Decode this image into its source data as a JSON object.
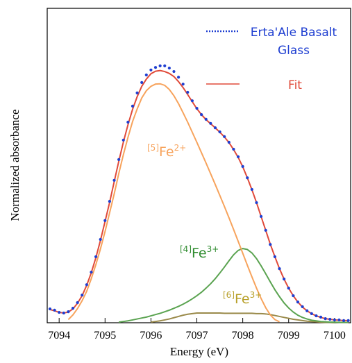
{
  "chart_data": {
    "type": "line",
    "x_label": "Energy (eV)",
    "y_label": "Normalized absorbance",
    "x": [
      7093.8,
      7093.9,
      7094.0,
      7094.1,
      7094.2,
      7094.3,
      7094.4,
      7094.5,
      7094.6,
      7094.7,
      7094.8,
      7094.9,
      7095.0,
      7095.1,
      7095.2,
      7095.3,
      7095.4,
      7095.5,
      7095.6,
      7095.7,
      7095.8,
      7095.9,
      7096.0,
      7096.1,
      7096.2,
      7096.3,
      7096.4,
      7096.5,
      7096.6,
      7096.7,
      7096.8,
      7096.9,
      7097.0,
      7097.1,
      7097.2,
      7097.3,
      7097.4,
      7097.5,
      7097.6,
      7097.7,
      7097.8,
      7097.9,
      7098.0,
      7098.1,
      7098.2,
      7098.3,
      7098.4,
      7098.5,
      7098.6,
      7098.7,
      7098.8,
      7098.9,
      7099.0,
      7099.1,
      7099.2,
      7099.3,
      7099.4,
      7099.5,
      7099.6,
      7099.7,
      7099.8,
      7099.9,
      7100.0,
      7100.1,
      7100.2,
      7100.3
    ],
    "xlim": [
      7093.74,
      7100.35
    ],
    "ylim": [
      0,
      1
    ],
    "xticks": [
      7094,
      7095,
      7096,
      7097,
      7098,
      7099,
      7100
    ],
    "series": [
      {
        "name": "Erta'Ale Basalt Glass",
        "color": "#1f3fd1",
        "style": "dots",
        "values": [
          0.044,
          0.04,
          0.033,
          0.031,
          0.035,
          0.046,
          0.064,
          0.088,
          0.121,
          0.161,
          0.21,
          0.265,
          0.325,
          0.386,
          0.453,
          0.519,
          0.581,
          0.638,
          0.689,
          0.731,
          0.764,
          0.788,
          0.804,
          0.812,
          0.817,
          0.817,
          0.81,
          0.799,
          0.781,
          0.759,
          0.733,
          0.706,
          0.682,
          0.662,
          0.647,
          0.634,
          0.62,
          0.607,
          0.592,
          0.574,
          0.552,
          0.528,
          0.497,
          0.461,
          0.424,
          0.382,
          0.338,
          0.294,
          0.249,
          0.21,
          0.172,
          0.139,
          0.11,
          0.086,
          0.066,
          0.051,
          0.038,
          0.029,
          0.022,
          0.018,
          0.013,
          0.011,
          0.009,
          0.009,
          0.007,
          0.007
        ]
      },
      {
        "name": "Fit",
        "color": "#e04a3a",
        "style": "line",
        "values": [
          0.042,
          0.038,
          0.033,
          0.031,
          0.034,
          0.044,
          0.062,
          0.086,
          0.119,
          0.159,
          0.207,
          0.262,
          0.322,
          0.383,
          0.449,
          0.514,
          0.575,
          0.63,
          0.679,
          0.719,
          0.752,
          0.775,
          0.792,
          0.8,
          0.802,
          0.799,
          0.793,
          0.783,
          0.767,
          0.748,
          0.726,
          0.703,
          0.681,
          0.662,
          0.646,
          0.633,
          0.62,
          0.606,
          0.591,
          0.573,
          0.551,
          0.526,
          0.496,
          0.461,
          0.423,
          0.382,
          0.338,
          0.294,
          0.25,
          0.21,
          0.172,
          0.139,
          0.11,
          0.086,
          0.066,
          0.05,
          0.038,
          0.029,
          0.022,
          0.017,
          0.013,
          0.011,
          0.009,
          0.008,
          0.007,
          0.007
        ]
      },
      {
        "color": "#f7a35c",
        "style": "line",
        "values": [
          null,
          null,
          null,
          null,
          0.01,
          0.025,
          0.045,
          0.07,
          0.1,
          0.14,
          0.185,
          0.235,
          0.29,
          0.35,
          0.41,
          0.475,
          0.535,
          0.59,
          0.64,
          0.68,
          0.715,
          0.738,
          0.752,
          0.759,
          0.76,
          0.755,
          0.742,
          0.722,
          0.697,
          0.668,
          0.638,
          0.606,
          0.574,
          0.541,
          0.508,
          0.474,
          0.44,
          0.405,
          0.37,
          0.334,
          0.297,
          0.259,
          0.221,
          0.183,
          0.146,
          0.11,
          0.077,
          0.048,
          0.025,
          0.01,
          0.003,
          null,
          null,
          null,
          null,
          null,
          null,
          null,
          null,
          null,
          null,
          null,
          null,
          null,
          null,
          null
        ]
      },
      {
        "color": "#5aa350",
        "style": "line",
        "values": [
          null,
          null,
          null,
          null,
          null,
          null,
          null,
          null,
          null,
          null,
          null,
          null,
          null,
          null,
          null,
          0.002,
          0.004,
          0.006,
          0.009,
          0.012,
          0.015,
          0.018,
          0.022,
          0.026,
          0.03,
          0.035,
          0.04,
          0.046,
          0.052,
          0.059,
          0.067,
          0.076,
          0.086,
          0.097,
          0.11,
          0.124,
          0.14,
          0.158,
          0.177,
          0.197,
          0.216,
          0.23,
          0.236,
          0.233,
          0.222,
          0.204,
          0.181,
          0.156,
          0.13,
          0.105,
          0.083,
          0.063,
          0.047,
          0.034,
          0.024,
          0.017,
          0.012,
          0.008,
          0.006,
          0.004,
          0.003,
          0.002,
          0.002,
          0.001,
          0.001,
          0.001
        ]
      },
      {
        "color": "#9a8a4a",
        "style": "line",
        "values": [
          null,
          null,
          null,
          null,
          null,
          null,
          null,
          null,
          null,
          null,
          null,
          null,
          null,
          null,
          null,
          null,
          null,
          null,
          null,
          null,
          null,
          null,
          0.002,
          0.004,
          0.006,
          0.009,
          0.012,
          0.016,
          0.02,
          0.024,
          0.027,
          0.029,
          0.031,
          0.031,
          0.031,
          0.031,
          0.031,
          0.031,
          0.03,
          0.03,
          0.03,
          0.03,
          0.03,
          0.03,
          0.03,
          0.029,
          0.029,
          0.028,
          0.026,
          0.023,
          0.02,
          0.017,
          0.014,
          0.011,
          0.009,
          0.007,
          0.005,
          0.004,
          0.003,
          0.002,
          0.001,
          0.001,
          0,
          null,
          null,
          null
        ]
      }
    ],
    "annotations": [
      {
        "site": "[5]",
        "element": "Fe",
        "charge": "2+",
        "color": "#f7a35c"
      },
      {
        "site": "[4]",
        "element": "Fe",
        "charge": "3+",
        "color": "#2e8b2e"
      },
      {
        "site": "[6]",
        "element": "Fe",
        "charge": "3+",
        "color": "#b8a02a"
      }
    ]
  }
}
